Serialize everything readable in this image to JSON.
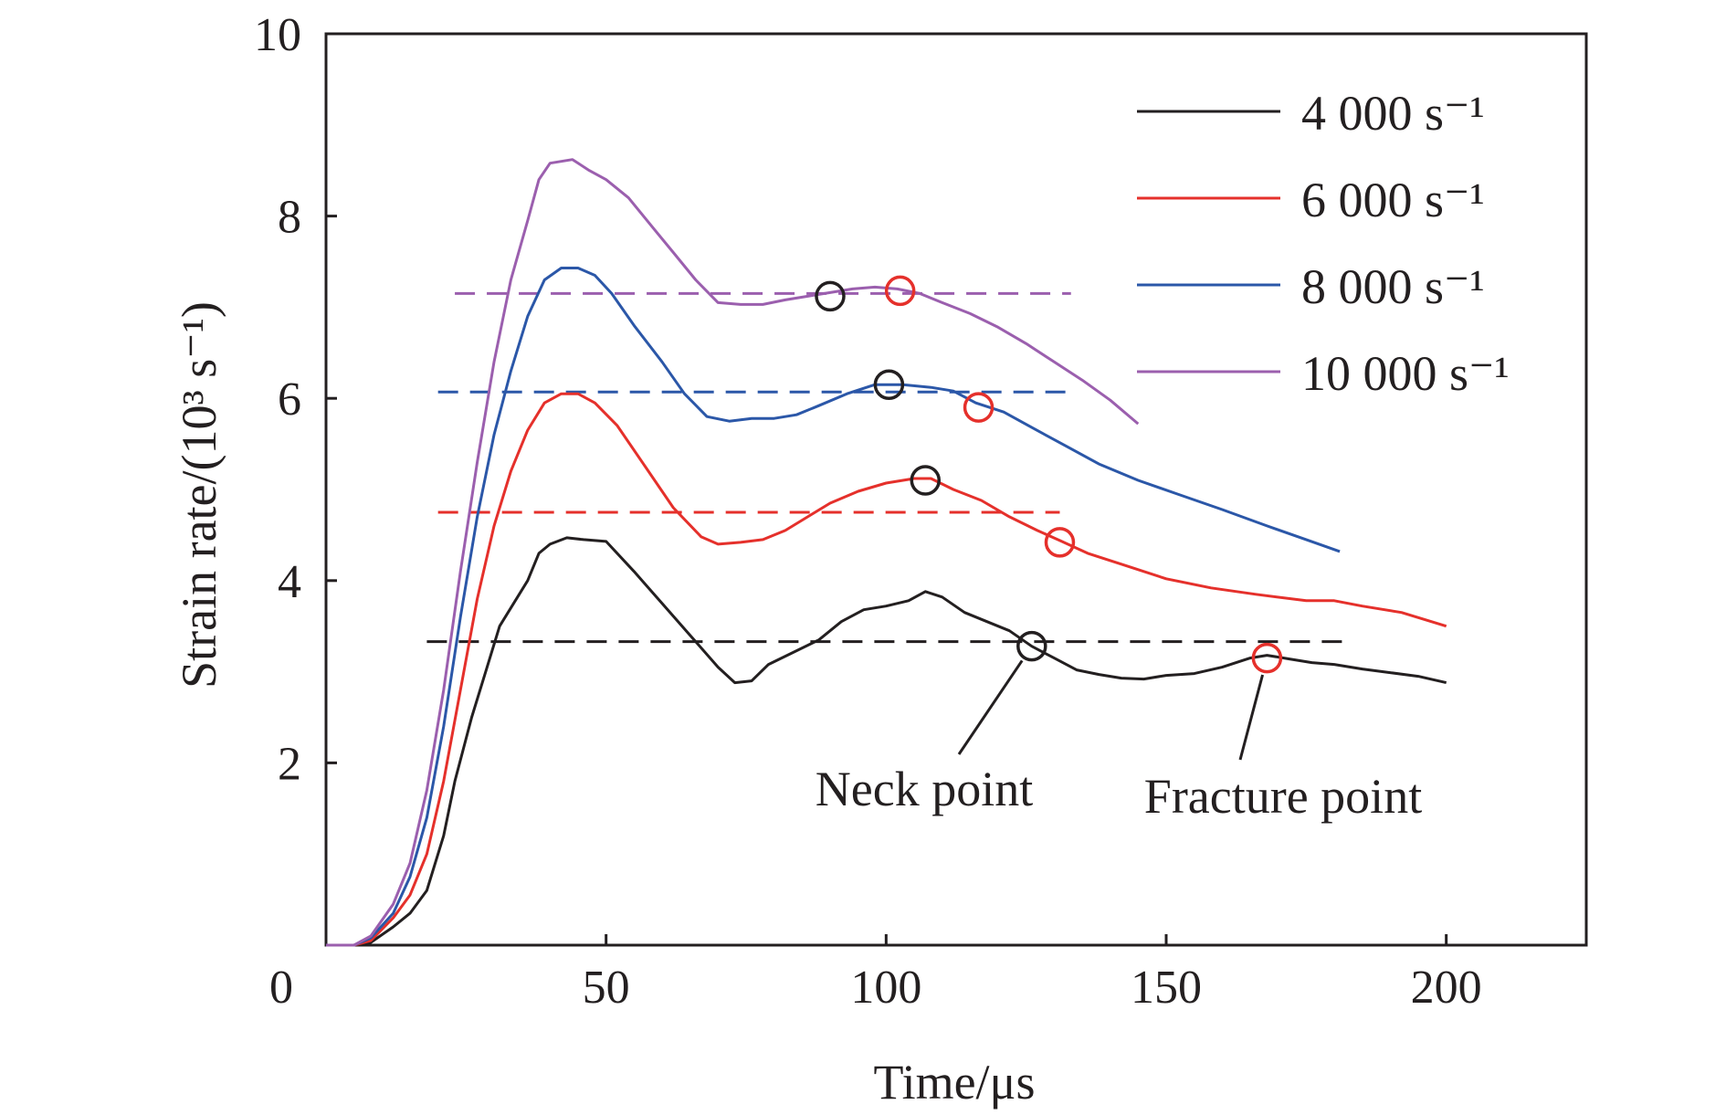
{
  "chart_data": {
    "type": "line",
    "title": "",
    "xlabel": "Time/μs",
    "ylabel": "Strain rate/(10³ s⁻¹)",
    "xlim": [
      0,
      225
    ],
    "ylim": [
      0,
      10
    ],
    "x_ticks": [
      "50",
      "100",
      "150",
      "200"
    ],
    "x_tick_values": [
      50,
      100,
      150,
      200
    ],
    "y_ticks": [
      "2",
      "4",
      "6",
      "8",
      "10"
    ],
    "y_tick_values": [
      2,
      4,
      6,
      8,
      10
    ],
    "origin_label": "0",
    "grid": false,
    "legend_position": "top-right",
    "series": [
      {
        "name": "4 000 s⁻¹",
        "color": "#231f20",
        "points": [
          [
            0,
            0
          ],
          [
            5,
            0
          ],
          [
            8,
            0.03
          ],
          [
            12,
            0.2
          ],
          [
            15,
            0.35
          ],
          [
            18,
            0.6
          ],
          [
            21,
            1.2
          ],
          [
            23,
            1.8
          ],
          [
            26,
            2.5
          ],
          [
            29,
            3.1
          ],
          [
            31,
            3.5
          ],
          [
            33,
            3.7
          ],
          [
            36,
            4.0
          ],
          [
            38,
            4.3
          ],
          [
            40,
            4.4
          ],
          [
            43,
            4.47
          ],
          [
            46,
            4.45
          ],
          [
            50,
            4.43
          ],
          [
            55,
            4.1
          ],
          [
            60,
            3.75
          ],
          [
            65,
            3.4
          ],
          [
            70,
            3.05
          ],
          [
            73,
            2.88
          ],
          [
            76,
            2.9
          ],
          [
            79,
            3.08
          ],
          [
            83,
            3.2
          ],
          [
            88,
            3.35
          ],
          [
            92,
            3.55
          ],
          [
            96,
            3.68
          ],
          [
            100,
            3.72
          ],
          [
            104,
            3.78
          ],
          [
            107,
            3.88
          ],
          [
            110,
            3.82
          ],
          [
            114,
            3.65
          ],
          [
            118,
            3.55
          ],
          [
            122,
            3.45
          ],
          [
            126,
            3.28
          ],
          [
            130,
            3.15
          ],
          [
            134,
            3.02
          ],
          [
            138,
            2.97
          ],
          [
            142,
            2.93
          ],
          [
            146,
            2.92
          ],
          [
            150,
            2.96
          ],
          [
            155,
            2.98
          ],
          [
            160,
            3.05
          ],
          [
            165,
            3.15
          ],
          [
            168,
            3.18
          ],
          [
            172,
            3.14
          ],
          [
            176,
            3.1
          ],
          [
            180,
            3.08
          ],
          [
            185,
            3.03
          ],
          [
            190,
            2.99
          ],
          [
            195,
            2.95
          ],
          [
            200,
            2.88
          ]
        ]
      },
      {
        "name": "6 000 s⁻¹",
        "color": "#e5302b",
        "points": [
          [
            0,
            0
          ],
          [
            5,
            0
          ],
          [
            8,
            0.05
          ],
          [
            12,
            0.3
          ],
          [
            15,
            0.55
          ],
          [
            18,
            1.0
          ],
          [
            21,
            1.8
          ],
          [
            24,
            2.8
          ],
          [
            27,
            3.8
          ],
          [
            30,
            4.6
          ],
          [
            33,
            5.2
          ],
          [
            36,
            5.65
          ],
          [
            39,
            5.95
          ],
          [
            42,
            6.05
          ],
          [
            45,
            6.05
          ],
          [
            48,
            5.95
          ],
          [
            52,
            5.7
          ],
          [
            57,
            5.25
          ],
          [
            62,
            4.8
          ],
          [
            67,
            4.48
          ],
          [
            70,
            4.4
          ],
          [
            74,
            4.42
          ],
          [
            78,
            4.45
          ],
          [
            82,
            4.55
          ],
          [
            86,
            4.7
          ],
          [
            90,
            4.85
          ],
          [
            95,
            4.98
          ],
          [
            100,
            5.07
          ],
          [
            105,
            5.12
          ],
          [
            108,
            5.12
          ],
          [
            112,
            5.0
          ],
          [
            117,
            4.88
          ],
          [
            122,
            4.7
          ],
          [
            127,
            4.55
          ],
          [
            131,
            4.44
          ],
          [
            136,
            4.3
          ],
          [
            142,
            4.18
          ],
          [
            150,
            4.02
          ],
          [
            158,
            3.92
          ],
          [
            166,
            3.85
          ],
          [
            175,
            3.78
          ],
          [
            180,
            3.78
          ],
          [
            185,
            3.72
          ],
          [
            192,
            3.65
          ],
          [
            200,
            3.5
          ]
        ]
      },
      {
        "name": "8 000 s⁻¹",
        "color": "#2b57a8",
        "points": [
          [
            0,
            0
          ],
          [
            5,
            0
          ],
          [
            8,
            0.08
          ],
          [
            12,
            0.35
          ],
          [
            15,
            0.75
          ],
          [
            18,
            1.4
          ],
          [
            21,
            2.4
          ],
          [
            24,
            3.6
          ],
          [
            27,
            4.7
          ],
          [
            30,
            5.6
          ],
          [
            33,
            6.3
          ],
          [
            36,
            6.9
          ],
          [
            39,
            7.3
          ],
          [
            42,
            7.43
          ],
          [
            45,
            7.43
          ],
          [
            48,
            7.35
          ],
          [
            51,
            7.15
          ],
          [
            55,
            6.8
          ],
          [
            60,
            6.4
          ],
          [
            64,
            6.05
          ],
          [
            68,
            5.8
          ],
          [
            72,
            5.75
          ],
          [
            76,
            5.78
          ],
          [
            80,
            5.78
          ],
          [
            84,
            5.82
          ],
          [
            88,
            5.92
          ],
          [
            93,
            6.05
          ],
          [
            98,
            6.15
          ],
          [
            103,
            6.15
          ],
          [
            108,
            6.12
          ],
          [
            112,
            6.08
          ],
          [
            116,
            5.95
          ],
          [
            121,
            5.85
          ],
          [
            126,
            5.68
          ],
          [
            132,
            5.48
          ],
          [
            138,
            5.28
          ],
          [
            145,
            5.1
          ],
          [
            152,
            4.95
          ],
          [
            160,
            4.78
          ],
          [
            168,
            4.6
          ],
          [
            175,
            4.45
          ],
          [
            181,
            4.32
          ]
        ]
      },
      {
        "name": "10 000 s⁻¹",
        "color": "#9b5fae",
        "points": [
          [
            0,
            0
          ],
          [
            5,
            0
          ],
          [
            8,
            0.1
          ],
          [
            12,
            0.45
          ],
          [
            15,
            0.9
          ],
          [
            18,
            1.7
          ],
          [
            21,
            2.8
          ],
          [
            24,
            4.1
          ],
          [
            27,
            5.3
          ],
          [
            30,
            6.4
          ],
          [
            33,
            7.3
          ],
          [
            36,
            7.95
          ],
          [
            38,
            8.4
          ],
          [
            40,
            8.58
          ],
          [
            42,
            8.6
          ],
          [
            44,
            8.62
          ],
          [
            47,
            8.5
          ],
          [
            50,
            8.4
          ],
          [
            54,
            8.2
          ],
          [
            58,
            7.9
          ],
          [
            62,
            7.6
          ],
          [
            66,
            7.3
          ],
          [
            70,
            7.05
          ],
          [
            74,
            7.03
          ],
          [
            78,
            7.03
          ],
          [
            82,
            7.08
          ],
          [
            86,
            7.12
          ],
          [
            90,
            7.16
          ],
          [
            94,
            7.2
          ],
          [
            98,
            7.22
          ],
          [
            102,
            7.2
          ],
          [
            106,
            7.15
          ],
          [
            110,
            7.05
          ],
          [
            115,
            6.93
          ],
          [
            120,
            6.78
          ],
          [
            125,
            6.6
          ],
          [
            130,
            6.4
          ],
          [
            135,
            6.2
          ],
          [
            140,
            5.98
          ],
          [
            145,
            5.72
          ]
        ]
      }
    ],
    "reference_lines": [
      {
        "series": "4 000 s⁻¹",
        "y": 3.33,
        "x_range": [
          18,
          183
        ],
        "color": "#231f20"
      },
      {
        "series": "6 000 s⁻¹",
        "y": 4.75,
        "x_range": [
          20,
          131
        ],
        "color": "#e5302b"
      },
      {
        "series": "8 000 s⁻¹",
        "y": 6.07,
        "x_range": [
          20,
          132
        ],
        "color": "#2b57a8"
      },
      {
        "series": "10 000 s⁻¹",
        "y": 7.15,
        "x_range": [
          23,
          133
        ],
        "color": "#9b5fae"
      }
    ],
    "markers": [
      {
        "kind": "neck",
        "series": "4 000 s⁻¹",
        "x": 126,
        "y": 3.28,
        "color": "#231f20"
      },
      {
        "kind": "neck",
        "series": "6 000 s⁻¹",
        "x": 107,
        "y": 5.1,
        "color": "#231f20"
      },
      {
        "kind": "neck",
        "series": "8 000 s⁻¹",
        "x": 100.5,
        "y": 6.15,
        "color": "#231f20"
      },
      {
        "kind": "neck",
        "series": "10 000 s⁻¹",
        "x": 90,
        "y": 7.12,
        "color": "#231f20"
      },
      {
        "kind": "fracture",
        "series": "4 000 s⁻¹",
        "x": 168,
        "y": 3.15,
        "color": "#e5302b"
      },
      {
        "kind": "fracture",
        "series": "6 000 s⁻¹",
        "x": 131,
        "y": 4.42,
        "color": "#e5302b"
      },
      {
        "kind": "fracture",
        "series": "8 000 s⁻¹",
        "x": 116.5,
        "y": 5.9,
        "color": "#e5302b"
      },
      {
        "kind": "fracture",
        "series": "10 000 s⁻¹",
        "x": 102.5,
        "y": 7.18,
        "color": "#e5302b"
      }
    ],
    "annotations": [
      {
        "text": "Neck point",
        "points_to": {
          "x": 126,
          "y": 3.28
        }
      },
      {
        "text": "Fracture point",
        "points_to": {
          "x": 168,
          "y": 3.15
        }
      }
    ]
  }
}
